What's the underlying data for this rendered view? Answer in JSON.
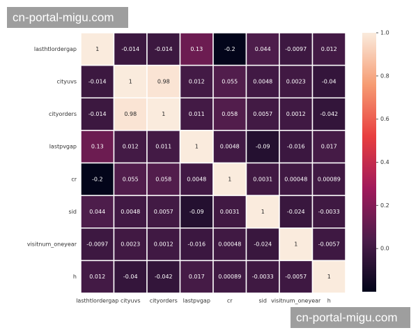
{
  "chart_data": {
    "type": "heatmap",
    "x_categories": [
      "lasthtlordergap",
      "cityuvs",
      "cityorders",
      "lastpvgap",
      "cr",
      "sid",
      "visitnum_oneyear",
      "h"
    ],
    "y_categories": [
      "lasthtlordergap",
      "cityuvs",
      "cityorders",
      "lastpvgap",
      "cr",
      "sid",
      "visitnum_oneyear",
      "h"
    ],
    "values": [
      [
        1,
        -0.014,
        -0.014,
        0.13,
        -0.2,
        0.044,
        -0.0097,
        0.012
      ],
      [
        -0.014,
        1,
        0.98,
        0.012,
        0.055,
        0.0048,
        0.0023,
        -0.04
      ],
      [
        -0.014,
        0.98,
        1,
        0.011,
        0.058,
        0.0057,
        0.0012,
        -0.042
      ],
      [
        0.13,
        0.012,
        0.011,
        1,
        0.0048,
        -0.09,
        -0.016,
        0.017
      ],
      [
        -0.2,
        0.055,
        0.058,
        0.0048,
        1,
        0.0031,
        0.00048,
        0.00089
      ],
      [
        0.044,
        0.0048,
        0.0057,
        -0.09,
        0.0031,
        1,
        -0.024,
        -0.0033
      ],
      [
        -0.0097,
        0.0023,
        0.0012,
        -0.016,
        0.00048,
        -0.024,
        1,
        -0.0057
      ],
      [
        0.012,
        -0.04,
        -0.042,
        0.017,
        0.00089,
        -0.0033,
        -0.0057,
        1
      ]
    ],
    "zlim": [
      -0.2,
      1
    ],
    "zticks": [
      {
        "value": 0,
        "label": "0.0"
      },
      {
        "value": 0.2,
        "label": "0.2"
      },
      {
        "value": 0.4,
        "label": "0.4"
      },
      {
        "value": 0.6,
        "label": "0.6"
      },
      {
        "value": 0.8,
        "label": "0.8"
      },
      {
        "value": 1,
        "label": "1.0"
      }
    ],
    "colormap": [
      "#03051a",
      "#4c1d4b",
      "#a11a5b",
      "#e83f3f",
      "#f69c73",
      "#faebdd"
    ],
    "annotations": [
      "cn-portal-migu.com",
      "cn-portal-migu.com"
    ]
  }
}
